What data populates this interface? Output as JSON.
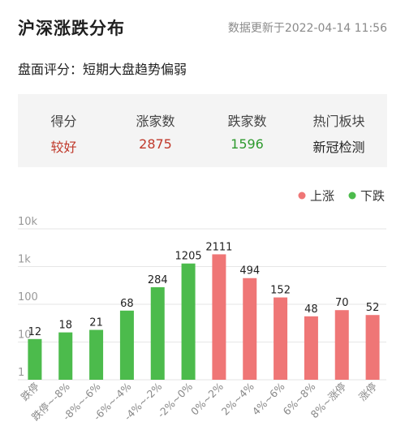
{
  "header": {
    "title": "沪深涨跌分布",
    "update_time": "数据更新于2022-04-14 11:56"
  },
  "evaluation": "盘面评分：短期大盘趋势偏弱",
  "stats": [
    {
      "label": "得分",
      "value": "较好",
      "color": "#c0392b"
    },
    {
      "label": "涨家数",
      "value": "2875",
      "color": "#c0392b"
    },
    {
      "label": "跌家数",
      "value": "1596",
      "color": "#2e9a2e"
    },
    {
      "label": "热门板块",
      "value": "新冠检测",
      "color": "#222222"
    }
  ],
  "colors": {
    "up": "#ef7676",
    "down": "#4cbb4c"
  },
  "chart_data": {
    "type": "bar",
    "yscale": "log",
    "ylim": [
      1,
      10000
    ],
    "yticks": [
      {
        "value": 1,
        "label": "1"
      },
      {
        "value": 10,
        "label": "10"
      },
      {
        "value": 100,
        "label": "100"
      },
      {
        "value": 1000,
        "label": "1k"
      },
      {
        "value": 10000,
        "label": "10k"
      }
    ],
    "legend": {
      "position": "top-right",
      "items": [
        {
          "name": "上涨",
          "color": "#ef7676"
        },
        {
          "name": "下跌",
          "color": "#4cbb4c"
        }
      ]
    },
    "categories": [
      "跌停",
      "跌停~-8%",
      "-8%~-6%",
      "-6%~-4%",
      "-4%~-2%",
      "-2%~0%",
      "0%~2%",
      "2%~4%",
      "4%~6%",
      "6%~8%",
      "8%~涨停",
      "涨停"
    ],
    "values": [
      12,
      18,
      21,
      68,
      284,
      1205,
      2111,
      494,
      152,
      48,
      70,
      52
    ],
    "groups": [
      "下跌",
      "下跌",
      "下跌",
      "下跌",
      "下跌",
      "下跌",
      "上涨",
      "上涨",
      "上涨",
      "上涨",
      "上涨",
      "上涨"
    ]
  }
}
